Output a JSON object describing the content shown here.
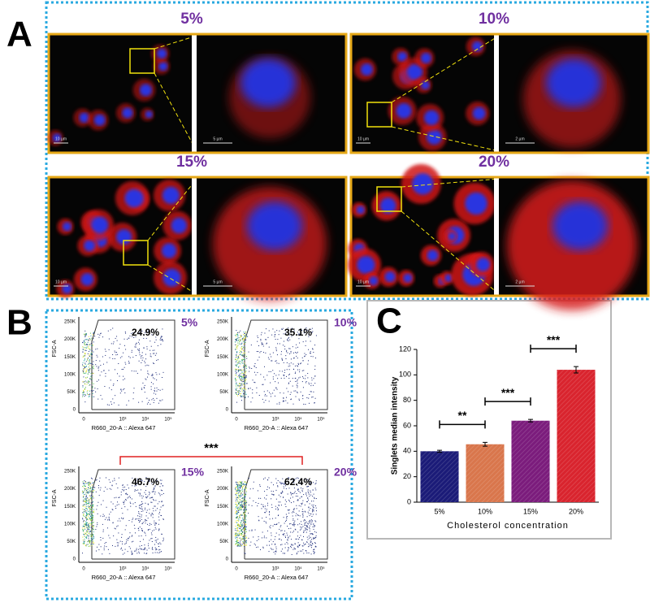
{
  "panel_a": {
    "label": "A",
    "images": [
      {
        "concentration": "5%",
        "scale_overview": "10 µm",
        "scale_zoom": "5 µm"
      },
      {
        "concentration": "10%",
        "scale_overview": "10 µm",
        "scale_zoom": "2 µm"
      },
      {
        "concentration": "15%",
        "scale_overview": "10 µm",
        "scale_zoom": "5 µm"
      },
      {
        "concentration": "20%",
        "scale_overview": "10 µm",
        "scale_zoom": "2 µm"
      }
    ]
  },
  "panel_b": {
    "label": "B",
    "y_axis_label": "FSC-A",
    "x_axis_label": "R660_20-A :: Alexa 647",
    "y_tick_labels": [
      "0",
      "50K",
      "100K",
      "150K",
      "200K",
      "250K"
    ],
    "x_tick_labels": [
      "0",
      "10³",
      "10⁴",
      "10⁵"
    ],
    "plots": [
      {
        "concentration": "5%",
        "gated": "24.9%"
      },
      {
        "concentration": "10%",
        "gated": "35.1%"
      },
      {
        "concentration": "15%",
        "gated": "46.7%"
      },
      {
        "concentration": "20%",
        "gated": "62.4%"
      }
    ],
    "significance": "***"
  },
  "chart_data": {
    "type": "bar",
    "panel_label": "C",
    "y_label": "Singlets median intensity",
    "x_label": "Cholesterol concentration",
    "categories": [
      "5%",
      "10%",
      "15%",
      "20%"
    ],
    "values": [
      40,
      45.5,
      64,
      104
    ],
    "errors": [
      0.8,
      1.5,
      1,
      2.5
    ],
    "colors": [
      "#1b1b78",
      "#d9764c",
      "#7b1c7c",
      "#d9242e"
    ],
    "ylim": [
      0,
      120
    ],
    "yticks": [
      0,
      20,
      40,
      60,
      80,
      100,
      120
    ],
    "significance": [
      {
        "from": 0,
        "to": 1,
        "label": "**"
      },
      {
        "from": 1,
        "to": 2,
        "label": "***"
      },
      {
        "from": 2,
        "to": 3,
        "label": "***"
      }
    ]
  }
}
